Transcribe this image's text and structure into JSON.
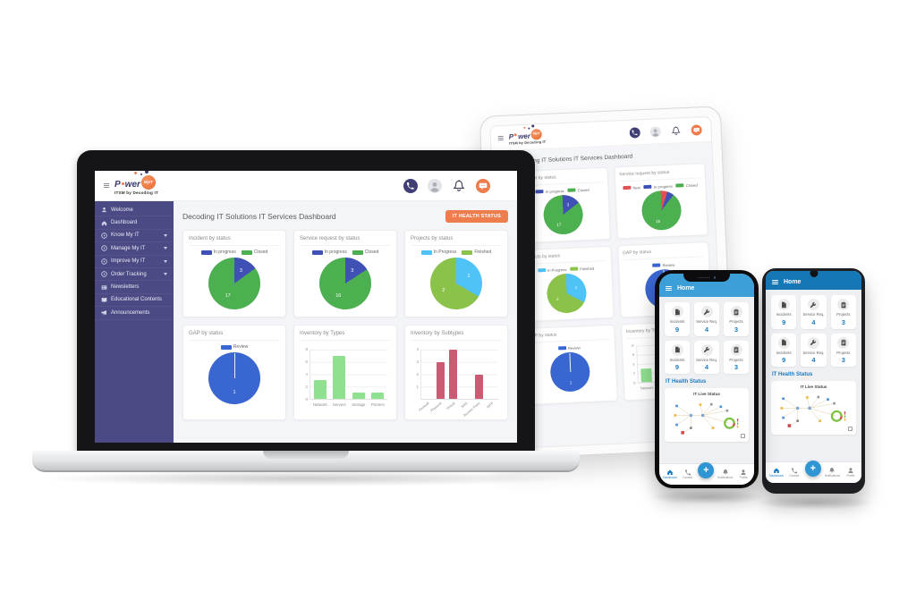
{
  "brand": {
    "power": "P",
    "wer": "wer",
    "myit": "MyIT",
    "tagline": "ITSM by Decoding IT"
  },
  "dashboard": {
    "title": "Decoding IT Solutions IT Services Dashboard",
    "health_button": "IT HEALTH STATUS"
  },
  "sidebar": {
    "items": [
      {
        "label": "Welcome"
      },
      {
        "label": "Dashboard"
      },
      {
        "label": "Know My IT"
      },
      {
        "label": "Manage My IT"
      },
      {
        "label": "Improve My IT"
      },
      {
        "label": "Order Tracking"
      },
      {
        "label": "Newsletters"
      },
      {
        "label": "Educational Contents"
      },
      {
        "label": "Announcements"
      }
    ]
  },
  "charts": {
    "incident": {
      "type": "pie",
      "title": "Incident by status",
      "legend": [
        {
          "label": "In progress",
          "color": "#3f51b5"
        },
        {
          "label": "Closed",
          "color": "#4caf50"
        }
      ],
      "values": [
        3,
        17
      ]
    },
    "service": {
      "type": "pie",
      "title": "Service request by status",
      "legend": [
        {
          "label": "In progress",
          "color": "#3f51b5"
        },
        {
          "label": "Closed",
          "color": "#4caf50"
        }
      ],
      "values": [
        3,
        16
      ]
    },
    "service_tablet": {
      "type": "pie",
      "title": "Service request by status",
      "legend": [
        {
          "label": "New",
          "color": "#e05252"
        },
        {
          "label": "In progress",
          "color": "#3f51b5"
        },
        {
          "label": "Closed",
          "color": "#4caf50"
        }
      ],
      "values": [
        1,
        1,
        16
      ]
    },
    "projects": {
      "type": "pie",
      "title": "Projects by status",
      "legend": [
        {
          "label": "In Progress",
          "color": "#4fc3f7"
        },
        {
          "label": "Finished",
          "color": "#8bc34a"
        }
      ],
      "values": [
        1,
        2
      ]
    },
    "gap": {
      "type": "pie",
      "title": "GAP by status",
      "legend": [
        {
          "label": "Review",
          "color": "#3a66d1"
        }
      ],
      "values": [
        1
      ]
    },
    "inv_types": {
      "type": "bar",
      "title": "Inventory by Types",
      "categories": [
        "Network",
        "Servers",
        "Storage",
        "Printers"
      ],
      "values": [
        3,
        7,
        1,
        1
      ],
      "color": "#8fe08f",
      "ymax": 8,
      "yticks": [
        8,
        6,
        4,
        2,
        0
      ]
    },
    "inv_subtypes": {
      "type": "bar",
      "title": "Inventory by Subtypes",
      "categories": [
        "Firewall",
        "Physical",
        "Virtual",
        "SAN",
        "Access Point",
        "MFP"
      ],
      "values": [
        0,
        3,
        4,
        0,
        2,
        0
      ],
      "color": "#cc5a72",
      "ymax": 4,
      "yticks": [
        4,
        3,
        2,
        1
      ],
      "rotate_labels": true
    }
  },
  "phone": {
    "appbar": "Home",
    "cards": [
      {
        "label": "Incidents",
        "value": "9"
      },
      {
        "label": "Service Req.",
        "value": "4"
      },
      {
        "label": "Projects",
        "value": "3"
      }
    ],
    "health_title": "IT Health Status",
    "live_title": "IT Live Status",
    "nav": [
      {
        "label": "Dashboard"
      },
      {
        "label": "Contact"
      },
      {
        "label": "+"
      },
      {
        "label": "Notifications"
      },
      {
        "label": "Profile"
      }
    ]
  }
}
